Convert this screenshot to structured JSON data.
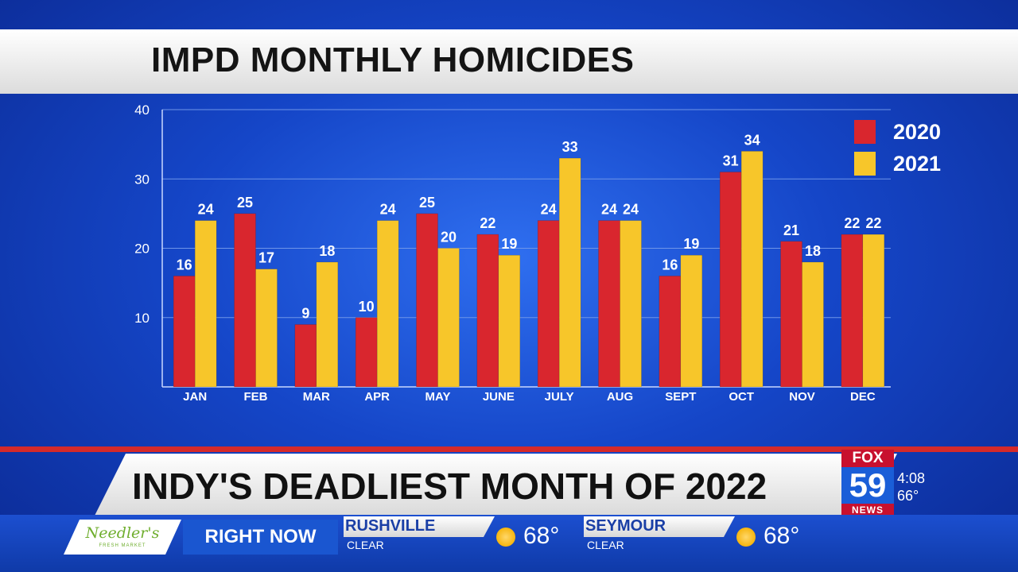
{
  "header": {
    "title": "IMPD MONTHLY HOMICIDES"
  },
  "colors": {
    "series_2020": "#d9262e",
    "series_2021": "#f7c62a"
  },
  "chart_data": {
    "type": "bar",
    "title": "IMPD MONTHLY HOMICIDES",
    "categories": [
      "JAN",
      "FEB",
      "MAR",
      "APR",
      "MAY",
      "JUNE",
      "JULY",
      "AUG",
      "SEPT",
      "OCT",
      "NOV",
      "DEC"
    ],
    "series": [
      {
        "name": "2020",
        "values": [
          16,
          25,
          9,
          10,
          25,
          22,
          24,
          24,
          16,
          31,
          21,
          22
        ]
      },
      {
        "name": "2021",
        "values": [
          24,
          17,
          18,
          24,
          20,
          19,
          33,
          24,
          19,
          34,
          18,
          22
        ]
      }
    ],
    "yticks": [
      10,
      20,
      30,
      40
    ],
    "ylim": [
      0,
      40
    ],
    "grid": true,
    "legend": "top-right",
    "data_labels": true
  },
  "lower_third": {
    "headline": "INDY'S DEADLIEST MONTH OF 2022",
    "logo_fox": "FOX",
    "logo_number": "59",
    "logo_news": "NEWS",
    "time": "4:08",
    "temperature": "66°"
  },
  "ticker": {
    "sponsor": "Needler's",
    "sponsor_sub": "FRESH MARKET",
    "right_now_label": "RIGHT NOW",
    "locations": [
      {
        "city": "RUSHVILLE",
        "condition": "CLEAR",
        "icon": "sun-icon",
        "temp": "68°"
      },
      {
        "city": "SEYMOUR",
        "condition": "CLEAR",
        "icon": "sun-icon",
        "temp": "68°"
      }
    ]
  }
}
